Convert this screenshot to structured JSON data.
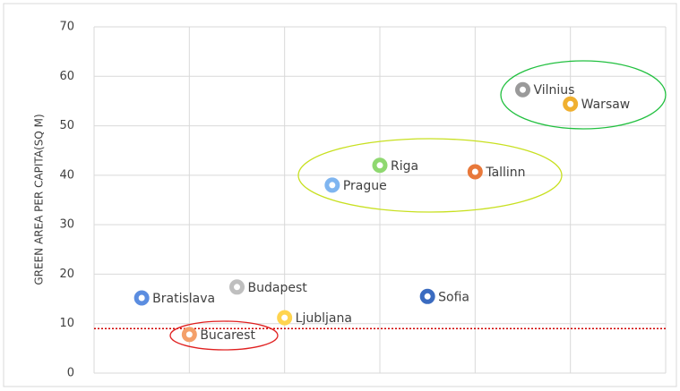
{
  "chart_data": {
    "type": "scatter",
    "y_label": "GREEN AREA PER CAPITA(SQ M)",
    "xlim": [
      0,
      12
    ],
    "xticks": [
      0,
      2,
      4,
      6,
      8,
      10,
      12
    ],
    "ylim": [
      0,
      70
    ],
    "yticks": [
      0,
      10,
      20,
      30,
      40,
      50,
      60,
      70
    ],
    "grid": true,
    "points": [
      {
        "name": "Bratislava",
        "x": 1,
        "y": 15.2,
        "color": "#5b8de0"
      },
      {
        "name": "Bucarest",
        "x": 2,
        "y": 7.8,
        "color": "#f4a06a"
      },
      {
        "name": "Budapest",
        "x": 3,
        "y": 17.4,
        "color": "#bfbfbf"
      },
      {
        "name": "Ljubljana",
        "x": 4,
        "y": 11.2,
        "color": "#ffd44f"
      },
      {
        "name": "Prague",
        "x": 5,
        "y": 38,
        "color": "#7fb5f0"
      },
      {
        "name": "Riga",
        "x": 6,
        "y": 42,
        "color": "#8fd870"
      },
      {
        "name": "Sofia",
        "x": 7,
        "y": 15.5,
        "color": "#3a6bc0"
      },
      {
        "name": "Tallinn",
        "x": 8,
        "y": 40.7,
        "color": "#e8783a"
      },
      {
        "name": "Vilnius",
        "x": 9,
        "y": 57.3,
        "color": "#9a9a9a"
      },
      {
        "name": "Warsaw",
        "x": 10,
        "y": 54.4,
        "color": "#f0b030"
      }
    ],
    "reference_line": {
      "value": 9,
      "color": "#d00000"
    }
  }
}
